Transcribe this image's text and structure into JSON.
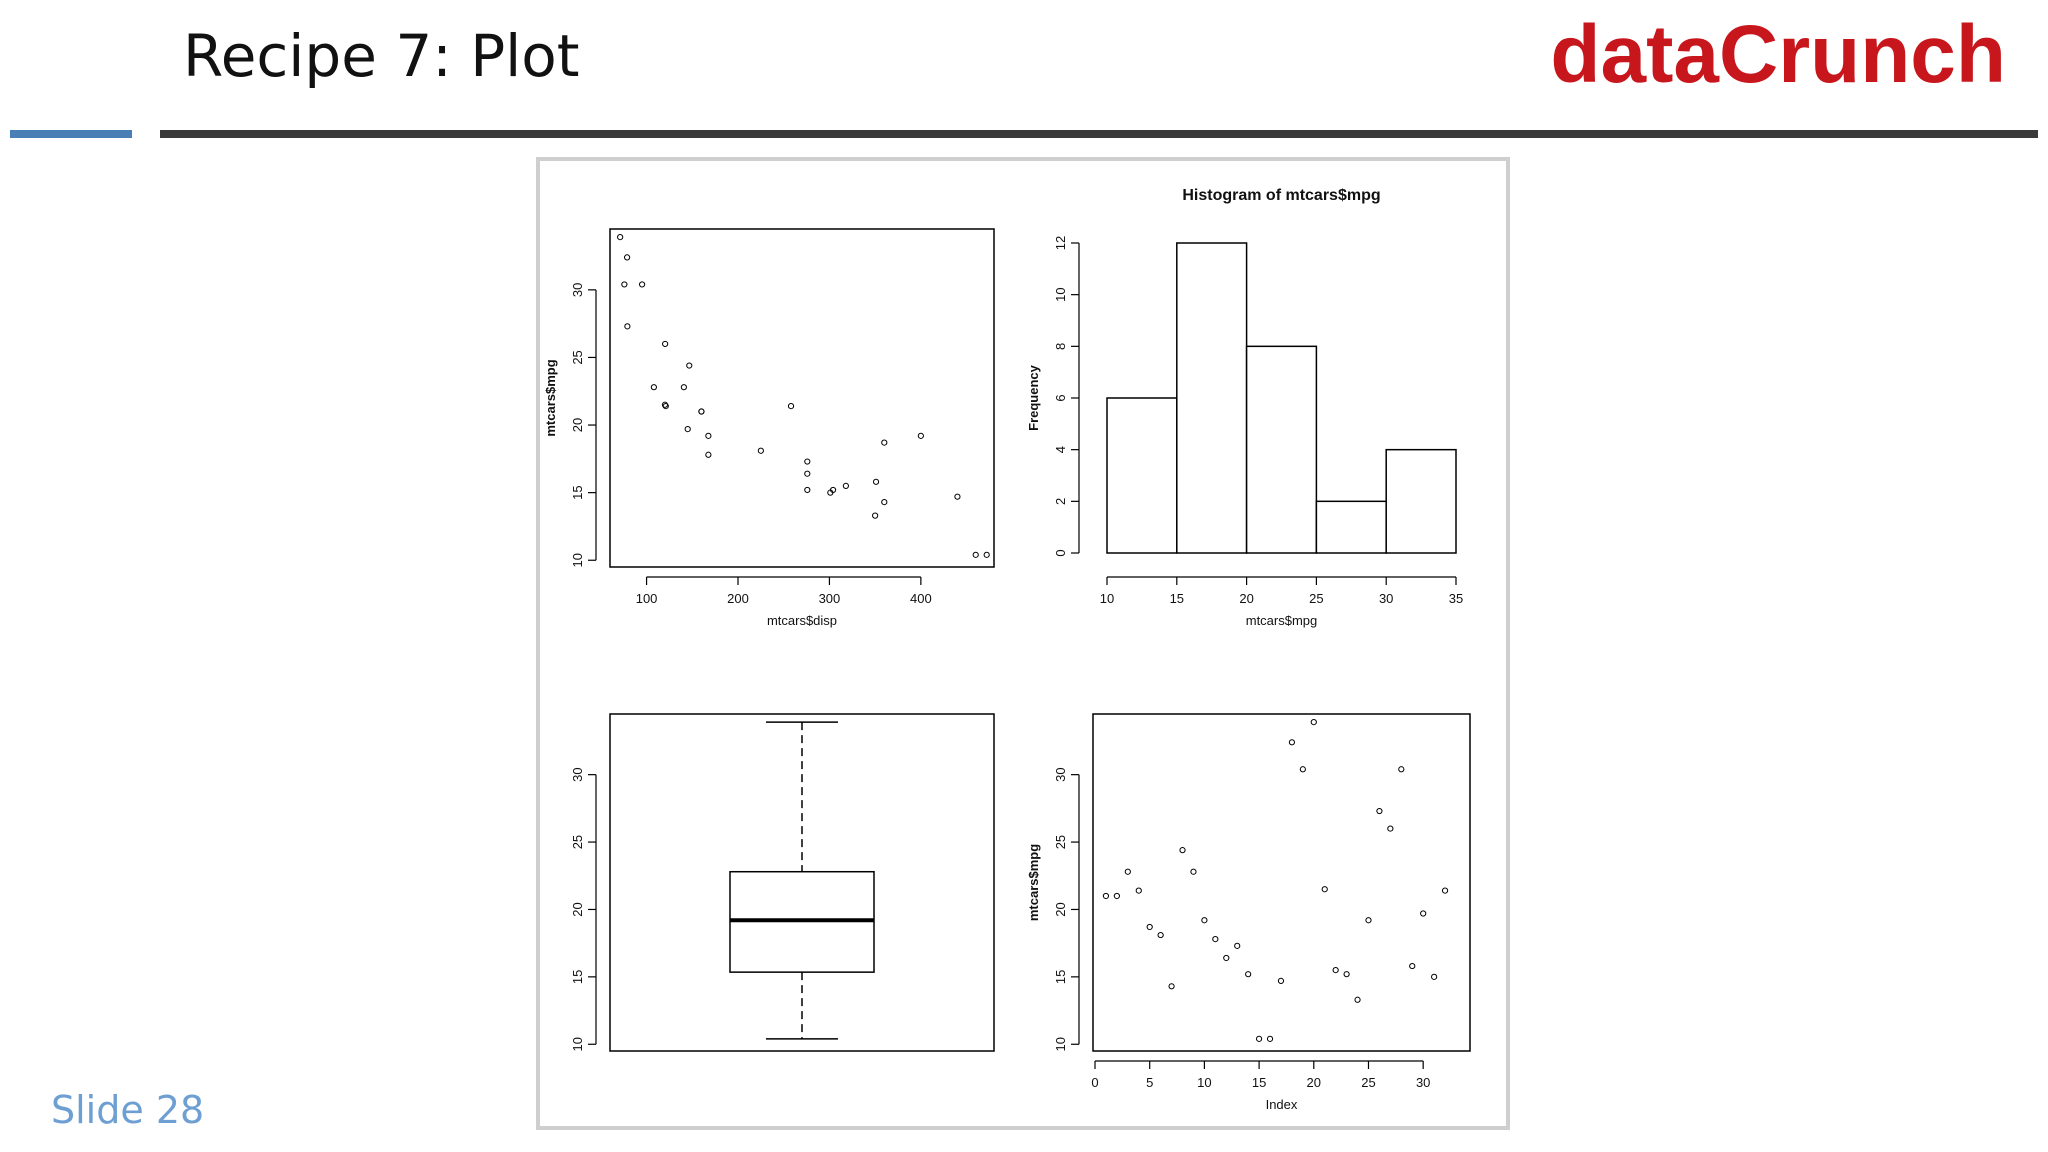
{
  "slide": {
    "title": "Recipe 7: Plot",
    "brand": "dataCrunch",
    "slide_number": "Slide 28"
  },
  "colors": {
    "brand_red": "#c8161d",
    "rule_blue": "#4a7fb5",
    "rule_dark": "#3a3a3a",
    "slide_number_blue": "#6d9fd2"
  },
  "chart_data": [
    {
      "type": "scatter",
      "title": "",
      "xlabel": "mtcars$disp",
      "ylabel": "mtcars$mpg",
      "xlim": [
        60,
        480
      ],
      "ylim": [
        9.5,
        34.5
      ],
      "xticks": [
        100,
        200,
        300,
        400
      ],
      "yticks": [
        10,
        15,
        20,
        25,
        30
      ],
      "points": [
        [
          160,
          21.0
        ],
        [
          160,
          21.0
        ],
        [
          108,
          22.8
        ],
        [
          258,
          21.4
        ],
        [
          360,
          18.7
        ],
        [
          225,
          18.1
        ],
        [
          360,
          14.3
        ],
        [
          146.7,
          24.4
        ],
        [
          140.8,
          22.8
        ],
        [
          167.6,
          19.2
        ],
        [
          167.6,
          17.8
        ],
        [
          275.8,
          16.4
        ],
        [
          275.8,
          17.3
        ],
        [
          275.8,
          15.2
        ],
        [
          472,
          10.4
        ],
        [
          460,
          10.4
        ],
        [
          440,
          14.7
        ],
        [
          78.7,
          32.4
        ],
        [
          75.7,
          30.4
        ],
        [
          71.1,
          33.9
        ],
        [
          120.1,
          21.5
        ],
        [
          318,
          15.5
        ],
        [
          304,
          15.2
        ],
        [
          350,
          13.3
        ],
        [
          400,
          19.2
        ],
        [
          79,
          27.3
        ],
        [
          120.3,
          26.0
        ],
        [
          95.1,
          30.4
        ],
        [
          351,
          15.8
        ],
        [
          145,
          19.7
        ],
        [
          301,
          15.0
        ],
        [
          121,
          21.4
        ]
      ]
    },
    {
      "type": "bar",
      "title": "Histogram of mtcars$mpg",
      "xlabel": "mtcars$mpg",
      "ylabel": "Frequency",
      "bins": [
        [
          10,
          15
        ],
        [
          15,
          20
        ],
        [
          20,
          25
        ],
        [
          25,
          30
        ],
        [
          30,
          35
        ]
      ],
      "values": [
        6,
        12,
        8,
        2,
        4
      ],
      "xlim": [
        10,
        35
      ],
      "ylim": [
        0,
        12
      ],
      "xticks": [
        10,
        15,
        20,
        25,
        30,
        35
      ],
      "yticks": [
        0,
        2,
        4,
        6,
        8,
        10,
        12
      ]
    },
    {
      "type": "box",
      "title": "",
      "ylim": [
        9.5,
        34.5
      ],
      "yticks": [
        10,
        15,
        20,
        25,
        30
      ],
      "min": 10.4,
      "q1": 15.35,
      "median": 19.2,
      "q3": 22.8,
      "max": 33.9
    },
    {
      "type": "scatter",
      "title": "",
      "xlabel": "Index",
      "ylabel": "mtcars$mpg",
      "xlim": [
        0,
        33
      ],
      "ylim": [
        9.5,
        34.5
      ],
      "xticks": [
        0,
        5,
        10,
        15,
        20,
        25,
        30
      ],
      "yticks": [
        10,
        15,
        20,
        25,
        30
      ],
      "values": [
        21.0,
        21.0,
        22.8,
        21.4,
        18.7,
        18.1,
        14.3,
        24.4,
        22.8,
        19.2,
        17.8,
        16.4,
        17.3,
        15.2,
        10.4,
        10.4,
        14.7,
        32.4,
        30.4,
        33.9,
        21.5,
        15.5,
        15.2,
        13.3,
        19.2,
        27.3,
        26.0,
        30.4,
        15.8,
        19.7,
        15.0,
        21.4
      ]
    }
  ]
}
